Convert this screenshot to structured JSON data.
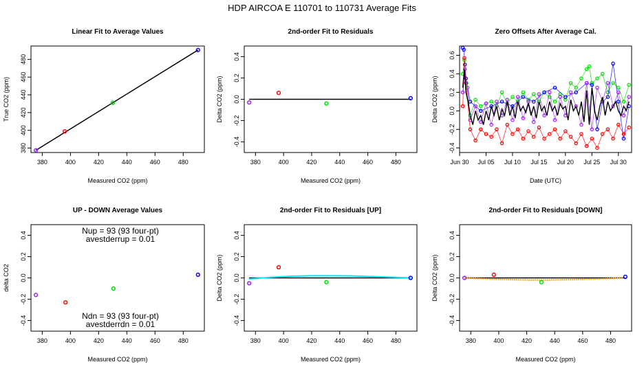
{
  "suptitle": "HDP   AIRCOA E  110701 to 110731   Average Fits",
  "colors": {
    "red": "#ff0000",
    "green": "#00dd00",
    "blue": "#0000ff",
    "purple": "#a020f0",
    "black": "#000000",
    "cyan": "#00e5ee",
    "orange": "#ffa500"
  },
  "chart_data": [
    {
      "type": "scatter",
      "title": "Linear Fit to Average Values",
      "xlabel": "Measured CO2 (ppm)",
      "ylabel": "True CO2 (ppm)",
      "xlim": [
        372,
        495
      ],
      "ylim": [
        375,
        495
      ],
      "xticks": [
        380,
        400,
        420,
        440,
        460,
        480
      ],
      "yticks": [
        380,
        400,
        420,
        440,
        460,
        480
      ],
      "points": [
        {
          "x": 375.5,
          "y": 377.5,
          "color": "purple"
        },
        {
          "x": 396.0,
          "y": 398.8,
          "color": "red"
        },
        {
          "x": 430.0,
          "y": 431.0,
          "color": "green"
        },
        {
          "x": 490.5,
          "y": 490.5,
          "color": "blue"
        }
      ],
      "lines": [
        {
          "x": [
            375.5,
            490.5
          ],
          "y": [
            377.5,
            490.5
          ],
          "color": "black"
        }
      ]
    },
    {
      "type": "scatter",
      "title": "2nd-order Fit to Residuals",
      "xlabel": "Measured CO2 (ppm)",
      "ylabel": "Delta CO2 (ppm)",
      "xlim": [
        372,
        495
      ],
      "ylim": [
        -0.5,
        0.5
      ],
      "xticks": [
        380,
        400,
        420,
        440,
        460,
        480
      ],
      "yticks": [
        -0.4,
        -0.2,
        0.0,
        0.2,
        0.4
      ],
      "points": [
        {
          "x": 375.5,
          "y": -0.03,
          "color": "purple"
        },
        {
          "x": 396.5,
          "y": 0.06,
          "color": "red"
        },
        {
          "x": 430.5,
          "y": -0.04,
          "color": "green"
        },
        {
          "x": 490.5,
          "y": 0.01,
          "color": "blue"
        }
      ],
      "lines": [
        {
          "x": [
            375.5,
            490.5
          ],
          "y": [
            0.0,
            0.0
          ],
          "color": "black"
        }
      ]
    },
    {
      "type": "line",
      "title": "Zero Offsets After Average Cal.",
      "xlabel": "Date (UTC)",
      "ylabel": "Delta CO2 (ppm)",
      "xlim": [
        0,
        32.5
      ],
      "ylim": [
        -0.45,
        0.7
      ],
      "x_unit": "days from Jun 30 (UTC)",
      "xticks": [
        0,
        5,
        10,
        15,
        20,
        25,
        30
      ],
      "xticklabels": [
        "Jun 30",
        "Jul 05",
        "Jul 10",
        "Jul 15",
        "Jul 20",
        "Jul 25",
        "Jul 30"
      ],
      "yticks": [
        -0.4,
        -0.2,
        0.0,
        0.2,
        0.4,
        0.6
      ],
      "series": [
        {
          "color": "green",
          "x": [
            0.6,
            0.9,
            1.3,
            2,
            3,
            4,
            5,
            6,
            7,
            8,
            9,
            10,
            11,
            12,
            13,
            14,
            15,
            16,
            17,
            18,
            19,
            20,
            21,
            22,
            23,
            24,
            24.5,
            25,
            26,
            27,
            28,
            29,
            30,
            31,
            32
          ],
          "y": [
            0.4,
            0.55,
            0.3,
            -0.05,
            0.12,
            0.05,
            0.08,
            0.1,
            0.05,
            0.2,
            0.08,
            0.15,
            0.1,
            0.2,
            0.12,
            0.18,
            0.1,
            0.2,
            0.15,
            0.1,
            0.18,
            0.12,
            0.3,
            0.25,
            0.35,
            0.45,
            0.48,
            0.3,
            0.35,
            0.4,
            0.2,
            0.3,
            0.25,
            0.1,
            0.28
          ]
        },
        {
          "color": "blue",
          "x": [
            0.6,
            0.8,
            1.0,
            1.2,
            2,
            4,
            6,
            8,
            10,
            12,
            14,
            16,
            18,
            20,
            22,
            24,
            25,
            26,
            27,
            28,
            29,
            30,
            31,
            32
          ],
          "y": [
            0.68,
            0.66,
            0.5,
            0.35,
            0.1,
            0.0,
            0.05,
            0.1,
            0.05,
            0.15,
            0.1,
            0.2,
            0.25,
            0.15,
            0.2,
            0.3,
            0.28,
            -0.2,
            0.1,
            0.15,
            0.51,
            0.1,
            -0.3,
            0.05
          ]
        },
        {
          "color": "red",
          "x": [
            0.6,
            0.9,
            1.2,
            2,
            3,
            4,
            5,
            6,
            7,
            8,
            9,
            10,
            11,
            12,
            13,
            14,
            15,
            16,
            17,
            18,
            19,
            20,
            21,
            22,
            23,
            24,
            25,
            26,
            27,
            28,
            29,
            30,
            31,
            32
          ],
          "y": [
            0.05,
            0.57,
            0.3,
            -0.2,
            -0.32,
            -0.2,
            -0.25,
            -0.28,
            -0.2,
            -0.35,
            -0.15,
            -0.25,
            -0.2,
            -0.3,
            -0.22,
            -0.28,
            -0.18,
            -0.3,
            -0.25,
            -0.2,
            -0.3,
            -0.22,
            -0.28,
            -0.35,
            -0.25,
            -0.38,
            -0.3,
            -0.4,
            -0.25,
            -0.2,
            -0.3,
            -0.15,
            -0.25,
            -0.18
          ]
        },
        {
          "color": "purple",
          "x": [
            0.6,
            1,
            1.5,
            2,
            3,
            4,
            5,
            6,
            7,
            8,
            9,
            10,
            11,
            12,
            13,
            14,
            15,
            16,
            17,
            18,
            19,
            20,
            21,
            22,
            23,
            24,
            25,
            26,
            27,
            28,
            29,
            30,
            31,
            32
          ],
          "y": [
            0.2,
            0.45,
            0.25,
            -0.1,
            0.05,
            -0.12,
            0.08,
            -0.15,
            0.1,
            -0.05,
            0.12,
            -0.1,
            0.15,
            -0.08,
            0.1,
            -0.12,
            0.18,
            -0.05,
            0.2,
            -0.1,
            0.15,
            -0.05,
            0.2,
            0.05,
            -0.15,
            0.3,
            -0.2,
            0.25,
            0.1,
            0.3,
            0.05,
            0.2,
            -0.05,
            0.15
          ]
        },
        {
          "color": "black",
          "x": [
            0.6,
            0.9,
            1.2,
            1.6,
            2,
            2.5,
            3,
            3.5,
            4,
            4.5,
            5,
            5.5,
            6,
            6.5,
            7,
            7.5,
            8,
            8.5,
            9,
            9.5,
            10,
            10.5,
            11,
            11.5,
            12,
            12.5,
            13,
            13.5,
            14,
            14.5,
            15,
            15.5,
            16,
            16.5,
            17,
            17.5,
            18,
            18.5,
            19,
            19.5,
            20,
            20.5,
            21,
            21.5,
            22,
            22.5,
            23,
            23.5,
            24,
            24.5,
            25,
            25.5,
            26,
            26.5,
            27,
            27.5,
            28,
            28.5,
            29,
            29.5,
            30,
            30.5,
            31,
            31.5,
            32
          ],
          "y": [
            0.25,
            0.45,
            0.2,
            0.1,
            -0.05,
            -0.15,
            0.0,
            -0.1,
            -0.05,
            -0.15,
            0.0,
            -0.1,
            0.05,
            -0.05,
            0.05,
            -0.1,
            0.02,
            -0.05,
            0.1,
            -0.05,
            0.05,
            -0.08,
            0.1,
            0.0,
            0.05,
            -0.02,
            0.08,
            -0.05,
            0.05,
            -0.08,
            0.1,
            0.0,
            0.05,
            -0.05,
            0.1,
            0.0,
            0.05,
            -0.05,
            0.08,
            0.02,
            0.05,
            -0.1,
            0.12,
            0.0,
            0.05,
            -0.05,
            0.1,
            -0.12,
            0.22,
            -0.15,
            0.25,
            0.0,
            -0.1,
            0.05,
            0.15,
            -0.05,
            0.1,
            0.0,
            0.05,
            0.1,
            0.0,
            -0.05,
            0.05,
            0.0,
            0.1
          ]
        }
      ]
    },
    {
      "type": "scatter",
      "title": "UP - DOWN Average Values",
      "xlabel": "Measured CO2 (ppm)",
      "ylabel": "delta CO2",
      "xlim": [
        372,
        495
      ],
      "ylim": [
        -0.5,
        0.5
      ],
      "xticks": [
        380,
        400,
        420,
        440,
        460,
        480
      ],
      "yticks": [
        -0.4,
        -0.2,
        0.0,
        0.2,
        0.4
      ],
      "points": [
        {
          "x": 375.5,
          "y": -0.16,
          "color": "purple"
        },
        {
          "x": 396.5,
          "y": -0.23,
          "color": "red"
        },
        {
          "x": 430.5,
          "y": -0.1,
          "color": "green"
        },
        {
          "x": 490.5,
          "y": 0.03,
          "color": "blue"
        }
      ],
      "annotations": [
        "Nup = 93 (93 four-pt)",
        "avestderrup =  0.01",
        "Ndn = 93 (93 four-pt)",
        "avestderrdn =  0.01"
      ]
    },
    {
      "type": "scatter",
      "title": "2nd-order Fit to Residuals [UP]",
      "xlabel": "Measured CO2 (ppm)",
      "ylabel": "Delta CO2 (ppm)",
      "xlim": [
        372,
        495
      ],
      "ylim": [
        -0.5,
        0.5
      ],
      "xticks": [
        380,
        400,
        420,
        440,
        460,
        480
      ],
      "yticks": [
        -0.4,
        -0.2,
        0.0,
        0.2,
        0.4
      ],
      "points": [
        {
          "x": 375.5,
          "y": -0.05,
          "color": "purple"
        },
        {
          "x": 396.5,
          "y": 0.1,
          "color": "red"
        },
        {
          "x": 430.5,
          "y": -0.04,
          "color": "green"
        },
        {
          "x": 490.5,
          "y": 0.0,
          "color": "blue"
        }
      ],
      "lines": [
        {
          "x": [
            375.5,
            490.5
          ],
          "y": [
            0.0,
            0.0
          ],
          "color": "black"
        },
        {
          "x": [
            375.5,
            390,
            405,
            420,
            435,
            450,
            465,
            480,
            490.5
          ],
          "y": [
            -0.01,
            0.005,
            0.015,
            0.02,
            0.02,
            0.018,
            0.012,
            0.005,
            0.0
          ],
          "color": "cyan"
        }
      ]
    },
    {
      "type": "scatter",
      "title": "2nd-order Fit to Residuals [DOWN]",
      "xlabel": "Measured CO2 (ppm)",
      "ylabel": "Delta CO2 (ppm)",
      "xlim": [
        372,
        495
      ],
      "ylim": [
        -0.5,
        0.5
      ],
      "xticks": [
        380,
        400,
        420,
        440,
        460,
        480
      ],
      "yticks": [
        -0.4,
        -0.2,
        0.0,
        0.2,
        0.4
      ],
      "points": [
        {
          "x": 375.5,
          "y": 0.0,
          "color": "purple"
        },
        {
          "x": 396.5,
          "y": 0.03,
          "color": "red"
        },
        {
          "x": 430.5,
          "y": -0.04,
          "color": "green"
        },
        {
          "x": 490.5,
          "y": 0.01,
          "color": "blue"
        }
      ],
      "lines": [
        {
          "x": [
            375.5,
            490.5
          ],
          "y": [
            0.0,
            0.0
          ],
          "color": "black"
        },
        {
          "x": [
            375.5,
            390,
            405,
            420,
            435,
            450,
            465,
            480,
            490.5
          ],
          "y": [
            0.0,
            -0.008,
            -0.015,
            -0.02,
            -0.02,
            -0.017,
            -0.012,
            -0.005,
            0.005
          ],
          "color": "orange"
        }
      ]
    }
  ]
}
